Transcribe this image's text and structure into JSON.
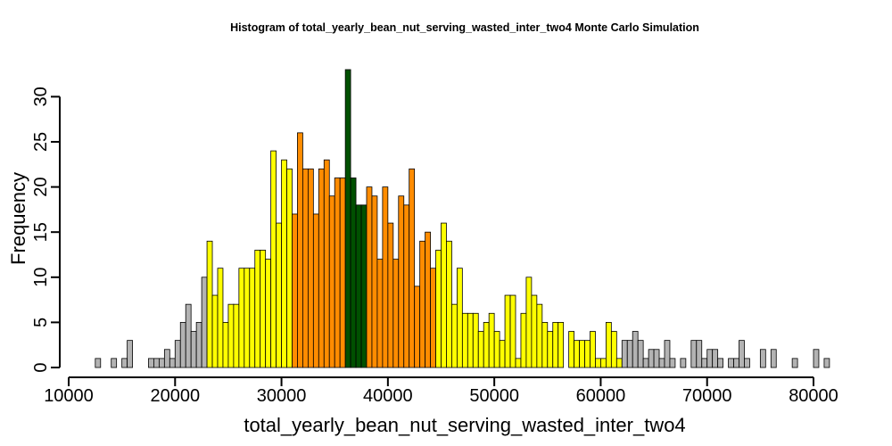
{
  "chart_data": {
    "type": "bar",
    "title": "Histogram of  total_yearly_bean_nut_serving_wasted_inter_two4  Monte Carlo Simulation",
    "xlabel": "total_yearly_bean_nut_serving_wasted_inter_two4",
    "ylabel": "Frequency",
    "xlim": [
      10000,
      82000
    ],
    "ylim": [
      0,
      33
    ],
    "bin_width": 500,
    "x_ticks": [
      {
        "value": 10000,
        "label": "10000"
      },
      {
        "value": 20000,
        "label": "20000"
      },
      {
        "value": 30000,
        "label": "30000"
      },
      {
        "value": 40000,
        "label": "40000"
      },
      {
        "value": 50000,
        "label": "50000"
      },
      {
        "value": 60000,
        "label": "60000"
      },
      {
        "value": 70000,
        "label": "70000"
      },
      {
        "value": 80000,
        "label": "80000"
      }
    ],
    "y_ticks": [
      {
        "value": 0,
        "label": "0"
      },
      {
        "value": 5,
        "label": "5"
      },
      {
        "value": 10,
        "label": "10"
      },
      {
        "value": 15,
        "label": "15"
      },
      {
        "value": 20,
        "label": "20"
      },
      {
        "value": 25,
        "label": "25"
      },
      {
        "value": 30,
        "label": "30"
      }
    ],
    "colors": {
      "tail": "#b3b3b3",
      "outer": "#ffff00",
      "inner": "#ff8c00",
      "center": "#005000"
    },
    "bins": [
      {
        "x": 12500,
        "count": 1,
        "band": "tail"
      },
      {
        "x": 13000,
        "count": 0,
        "band": "tail"
      },
      {
        "x": 13500,
        "count": 0,
        "band": "tail"
      },
      {
        "x": 14000,
        "count": 1,
        "band": "tail"
      },
      {
        "x": 14500,
        "count": 0,
        "band": "tail"
      },
      {
        "x": 15000,
        "count": 1,
        "band": "tail"
      },
      {
        "x": 15500,
        "count": 3,
        "band": "tail"
      },
      {
        "x": 16000,
        "count": 0,
        "band": "tail"
      },
      {
        "x": 16500,
        "count": 0,
        "band": "tail"
      },
      {
        "x": 17000,
        "count": 0,
        "band": "tail"
      },
      {
        "x": 17500,
        "count": 1,
        "band": "tail"
      },
      {
        "x": 18000,
        "count": 1,
        "band": "tail"
      },
      {
        "x": 18500,
        "count": 1,
        "band": "tail"
      },
      {
        "x": 19000,
        "count": 2,
        "band": "tail"
      },
      {
        "x": 19500,
        "count": 1,
        "band": "tail"
      },
      {
        "x": 20000,
        "count": 3,
        "band": "tail"
      },
      {
        "x": 20500,
        "count": 5,
        "band": "tail"
      },
      {
        "x": 21000,
        "count": 7,
        "band": "tail"
      },
      {
        "x": 21500,
        "count": 4,
        "band": "tail"
      },
      {
        "x": 22000,
        "count": 5,
        "band": "tail"
      },
      {
        "x": 22500,
        "count": 10,
        "band": "tail"
      },
      {
        "x": 23000,
        "count": 14,
        "band": "outer"
      },
      {
        "x": 23500,
        "count": 8,
        "band": "outer"
      },
      {
        "x": 24000,
        "count": 11,
        "band": "outer"
      },
      {
        "x": 24500,
        "count": 5,
        "band": "outer"
      },
      {
        "x": 25000,
        "count": 7,
        "band": "outer"
      },
      {
        "x": 25500,
        "count": 7,
        "band": "outer"
      },
      {
        "x": 26000,
        "count": 11,
        "band": "outer"
      },
      {
        "x": 26500,
        "count": 11,
        "band": "outer"
      },
      {
        "x": 27000,
        "count": 11,
        "band": "outer"
      },
      {
        "x": 27500,
        "count": 13,
        "band": "outer"
      },
      {
        "x": 28000,
        "count": 13,
        "band": "outer"
      },
      {
        "x": 28500,
        "count": 12,
        "band": "outer"
      },
      {
        "x": 29000,
        "count": 24,
        "band": "outer"
      },
      {
        "x": 29500,
        "count": 16,
        "band": "outer"
      },
      {
        "x": 30000,
        "count": 23,
        "band": "outer"
      },
      {
        "x": 30500,
        "count": 22,
        "band": "outer"
      },
      {
        "x": 31000,
        "count": 17,
        "band": "inner"
      },
      {
        "x": 31500,
        "count": 26,
        "band": "inner"
      },
      {
        "x": 32000,
        "count": 22,
        "band": "inner"
      },
      {
        "x": 32500,
        "count": 22,
        "band": "inner"
      },
      {
        "x": 33000,
        "count": 17,
        "band": "inner"
      },
      {
        "x": 33500,
        "count": 22,
        "band": "inner"
      },
      {
        "x": 34000,
        "count": 23,
        "band": "inner"
      },
      {
        "x": 34500,
        "count": 19,
        "band": "inner"
      },
      {
        "x": 35000,
        "count": 21,
        "band": "inner"
      },
      {
        "x": 35500,
        "count": 21,
        "band": "inner"
      },
      {
        "x": 36000,
        "count": 33,
        "band": "center"
      },
      {
        "x": 36500,
        "count": 21,
        "band": "center"
      },
      {
        "x": 37000,
        "count": 18,
        "band": "center"
      },
      {
        "x": 37500,
        "count": 18,
        "band": "center"
      },
      {
        "x": 38000,
        "count": 20,
        "band": "inner"
      },
      {
        "x": 38500,
        "count": 19,
        "band": "inner"
      },
      {
        "x": 39000,
        "count": 12,
        "band": "inner"
      },
      {
        "x": 39500,
        "count": 20,
        "band": "inner"
      },
      {
        "x": 40000,
        "count": 16,
        "band": "inner"
      },
      {
        "x": 40500,
        "count": 12,
        "band": "inner"
      },
      {
        "x": 41000,
        "count": 19,
        "band": "inner"
      },
      {
        "x": 41500,
        "count": 18,
        "band": "inner"
      },
      {
        "x": 42000,
        "count": 22,
        "band": "inner"
      },
      {
        "x": 42500,
        "count": 9,
        "band": "inner"
      },
      {
        "x": 43000,
        "count": 14,
        "band": "inner"
      },
      {
        "x": 43500,
        "count": 15,
        "band": "inner"
      },
      {
        "x": 44000,
        "count": 11,
        "band": "inner"
      },
      {
        "x": 44500,
        "count": 13,
        "band": "outer"
      },
      {
        "x": 45000,
        "count": 16,
        "band": "outer"
      },
      {
        "x": 45500,
        "count": 14,
        "band": "outer"
      },
      {
        "x": 46000,
        "count": 7,
        "band": "outer"
      },
      {
        "x": 46500,
        "count": 11,
        "band": "outer"
      },
      {
        "x": 47000,
        "count": 6,
        "band": "outer"
      },
      {
        "x": 47500,
        "count": 6,
        "band": "outer"
      },
      {
        "x": 48000,
        "count": 6,
        "band": "outer"
      },
      {
        "x": 48500,
        "count": 4,
        "band": "outer"
      },
      {
        "x": 49000,
        "count": 5,
        "band": "outer"
      },
      {
        "x": 49500,
        "count": 6,
        "band": "outer"
      },
      {
        "x": 50000,
        "count": 4,
        "band": "outer"
      },
      {
        "x": 50500,
        "count": 3,
        "band": "outer"
      },
      {
        "x": 51000,
        "count": 8,
        "band": "outer"
      },
      {
        "x": 51500,
        "count": 8,
        "band": "outer"
      },
      {
        "x": 52000,
        "count": 1,
        "band": "outer"
      },
      {
        "x": 52500,
        "count": 6,
        "band": "outer"
      },
      {
        "x": 53000,
        "count": 10,
        "band": "outer"
      },
      {
        "x": 53500,
        "count": 8,
        "band": "outer"
      },
      {
        "x": 54000,
        "count": 7,
        "band": "outer"
      },
      {
        "x": 54500,
        "count": 5,
        "band": "outer"
      },
      {
        "x": 55000,
        "count": 4,
        "band": "outer"
      },
      {
        "x": 55500,
        "count": 5,
        "band": "outer"
      },
      {
        "x": 56000,
        "count": 5,
        "band": "outer"
      },
      {
        "x": 56500,
        "count": 0,
        "band": "outer"
      },
      {
        "x": 57000,
        "count": 4,
        "band": "outer"
      },
      {
        "x": 57500,
        "count": 3,
        "band": "outer"
      },
      {
        "x": 58000,
        "count": 3,
        "band": "outer"
      },
      {
        "x": 58500,
        "count": 3,
        "band": "outer"
      },
      {
        "x": 59000,
        "count": 4,
        "band": "outer"
      },
      {
        "x": 59500,
        "count": 1,
        "band": "outer"
      },
      {
        "x": 60000,
        "count": 1,
        "band": "outer"
      },
      {
        "x": 60500,
        "count": 5,
        "band": "outer"
      },
      {
        "x": 61000,
        "count": 4,
        "band": "outer"
      },
      {
        "x": 61500,
        "count": 1,
        "band": "outer"
      },
      {
        "x": 62000,
        "count": 3,
        "band": "tail"
      },
      {
        "x": 62500,
        "count": 3,
        "band": "tail"
      },
      {
        "x": 63000,
        "count": 4,
        "band": "tail"
      },
      {
        "x": 63500,
        "count": 3,
        "band": "tail"
      },
      {
        "x": 64000,
        "count": 1,
        "band": "tail"
      },
      {
        "x": 64500,
        "count": 2,
        "band": "tail"
      },
      {
        "x": 65000,
        "count": 2,
        "band": "tail"
      },
      {
        "x": 65500,
        "count": 1,
        "band": "tail"
      },
      {
        "x": 66000,
        "count": 3,
        "band": "tail"
      },
      {
        "x": 66500,
        "count": 1,
        "band": "tail"
      },
      {
        "x": 67000,
        "count": 0,
        "band": "tail"
      },
      {
        "x": 67500,
        "count": 1,
        "band": "tail"
      },
      {
        "x": 68000,
        "count": 0,
        "band": "tail"
      },
      {
        "x": 68500,
        "count": 3,
        "band": "tail"
      },
      {
        "x": 69000,
        "count": 3,
        "band": "tail"
      },
      {
        "x": 69500,
        "count": 1,
        "band": "tail"
      },
      {
        "x": 70000,
        "count": 2,
        "band": "tail"
      },
      {
        "x": 70500,
        "count": 2,
        "band": "tail"
      },
      {
        "x": 71000,
        "count": 1,
        "band": "tail"
      },
      {
        "x": 71500,
        "count": 0,
        "band": "tail"
      },
      {
        "x": 72000,
        "count": 1,
        "band": "tail"
      },
      {
        "x": 72500,
        "count": 1,
        "band": "tail"
      },
      {
        "x": 73000,
        "count": 3,
        "band": "tail"
      },
      {
        "x": 73500,
        "count": 1,
        "band": "tail"
      },
      {
        "x": 74000,
        "count": 0,
        "band": "tail"
      },
      {
        "x": 74500,
        "count": 0,
        "band": "tail"
      },
      {
        "x": 75000,
        "count": 2,
        "band": "tail"
      },
      {
        "x": 75500,
        "count": 0,
        "band": "tail"
      },
      {
        "x": 76000,
        "count": 2,
        "band": "tail"
      },
      {
        "x": 76500,
        "count": 0,
        "band": "tail"
      },
      {
        "x": 77000,
        "count": 0,
        "band": "tail"
      },
      {
        "x": 77500,
        "count": 0,
        "band": "tail"
      },
      {
        "x": 78000,
        "count": 1,
        "band": "tail"
      },
      {
        "x": 78500,
        "count": 0,
        "band": "tail"
      },
      {
        "x": 79000,
        "count": 0,
        "band": "tail"
      },
      {
        "x": 79500,
        "count": 0,
        "band": "tail"
      },
      {
        "x": 80000,
        "count": 2,
        "band": "tail"
      },
      {
        "x": 80500,
        "count": 0,
        "band": "tail"
      },
      {
        "x": 81000,
        "count": 1,
        "band": "tail"
      }
    ]
  }
}
